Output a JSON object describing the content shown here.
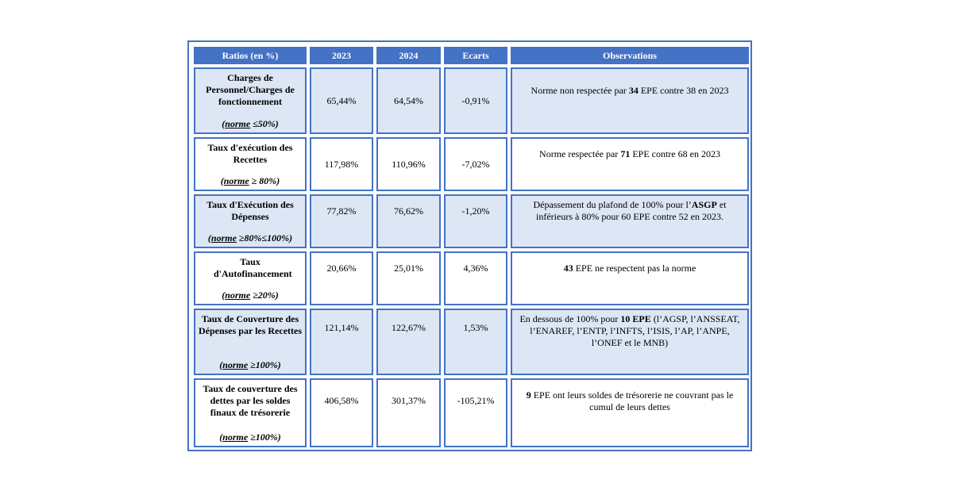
{
  "table": {
    "headers": [
      "Ratios (en %)",
      "2023",
      "2024",
      "Ecarts",
      "Observations"
    ],
    "rows": [
      {
        "ratio": "Charges de Personnel/Charges de fonctionnement",
        "norme_word": "norme",
        "norme_rest": " ≤50%)",
        "v2023": "65,44%",
        "v2024": "64,54%",
        "ecart": "-0,91%",
        "obs_pre": "Norme non respectée par ",
        "obs_bold": "34",
        "obs_post": " EPE contre 38 en 2023"
      },
      {
        "ratio": "Taux d'exécution des Recettes",
        "norme_word": "norme",
        "norme_rest": " ≥ 80%)",
        "v2023": "117,98%",
        "v2024": "110,96%",
        "ecart": "-7,02%",
        "obs_pre": "Norme respectée par ",
        "obs_bold": "71",
        "obs_post": " EPE contre 68 en 2023"
      },
      {
        "ratio": "Taux d'Exécution des Dépenses",
        "norme_word": "norme",
        "norme_rest": " ≥80%≤100%)",
        "v2023": "77,82%",
        "v2024": "76,62%",
        "ecart": "-1,20%",
        "obs_pre": "Dépassement du plafond de 100% pour l’",
        "obs_bold": "ASGP",
        "obs_post": " et inférieurs à 80% pour 60 EPE contre 52 en 2023."
      },
      {
        "ratio": "Taux d'Autofinancement",
        "norme_word": "norme",
        "norme_rest": " ≥20%)",
        "v2023": "20,66%",
        "v2024": "25,01%",
        "ecart": "4,36%",
        "obs_pre": "",
        "obs_bold": "43",
        "obs_post": " EPE ne respectent pas la norme"
      },
      {
        "ratio": "Taux de Couverture des Dépenses par les Recettes",
        "norme_word": "norme",
        "norme_rest": " ≥100%)",
        "v2023": "121,14%",
        "v2024": "122,67%",
        "ecart": "1,53%",
        "obs_pre": "En dessous de 100% pour ",
        "obs_bold": "10 EPE",
        "obs_post": " (l’AGSP, l’ANSSEAT, l’ENAREF, l’ENTP, l’INFTS, l’ISIS, l’AP, l’ANPE, l’ONEF et le MNB)"
      },
      {
        "ratio": "Taux de couverture des dettes par les soldes finaux de trésorerie",
        "norme_word": "norme",
        "norme_rest": " ≥100%)",
        "v2023": "406,58%",
        "v2024": "301,37%",
        "ecart": "-105,21%",
        "obs_pre": "",
        "obs_bold": "9",
        "obs_post": " EPE ont leurs soldes de trésorerie ne couvrant pas le cumul de leurs dettes"
      }
    ]
  },
  "colors": {
    "header_bg": "#4472c4",
    "border": "#4472c4",
    "shade_bg": "#dce6f4"
  }
}
